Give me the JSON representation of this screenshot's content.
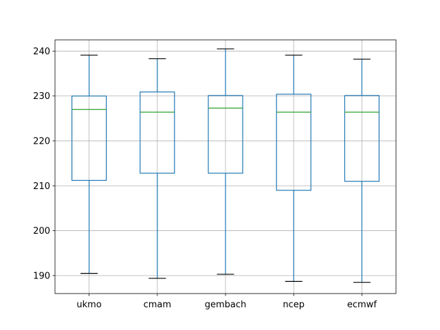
{
  "chart_data": {
    "type": "box",
    "title": "",
    "xlabel": "",
    "ylabel": "",
    "categories": [
      "ukmo",
      "cmam",
      "gembach",
      "ncep",
      "ecmwf"
    ],
    "boxes": [
      {
        "name": "ukmo",
        "whisker_low": 190.5,
        "q1": 211.2,
        "median": 227.0,
        "q3": 230.0,
        "whisker_high": 239.1
      },
      {
        "name": "cmam",
        "whisker_low": 189.4,
        "q1": 212.8,
        "median": 226.4,
        "q3": 230.9,
        "whisker_high": 238.3
      },
      {
        "name": "gembach",
        "whisker_low": 190.3,
        "q1": 212.8,
        "median": 227.3,
        "q3": 230.1,
        "whisker_high": 240.5
      },
      {
        "name": "ncep",
        "whisker_low": 188.7,
        "q1": 209.0,
        "median": 226.4,
        "q3": 230.4,
        "whisker_high": 239.1
      },
      {
        "name": "ecmwf",
        "whisker_low": 188.5,
        "q1": 211.0,
        "median": 226.4,
        "q3": 230.1,
        "whisker_high": 238.2
      }
    ],
    "ylim": [
      186.0,
      242.5
    ],
    "yticks": [
      190,
      200,
      210,
      220,
      230,
      240
    ],
    "grid": true,
    "colors": {
      "box": "#1f77b4",
      "median": "#2ca02c",
      "whisker": "#1f77b4",
      "cap": "#000000",
      "grid": "#b0b0b0",
      "axis": "#000000"
    }
  }
}
